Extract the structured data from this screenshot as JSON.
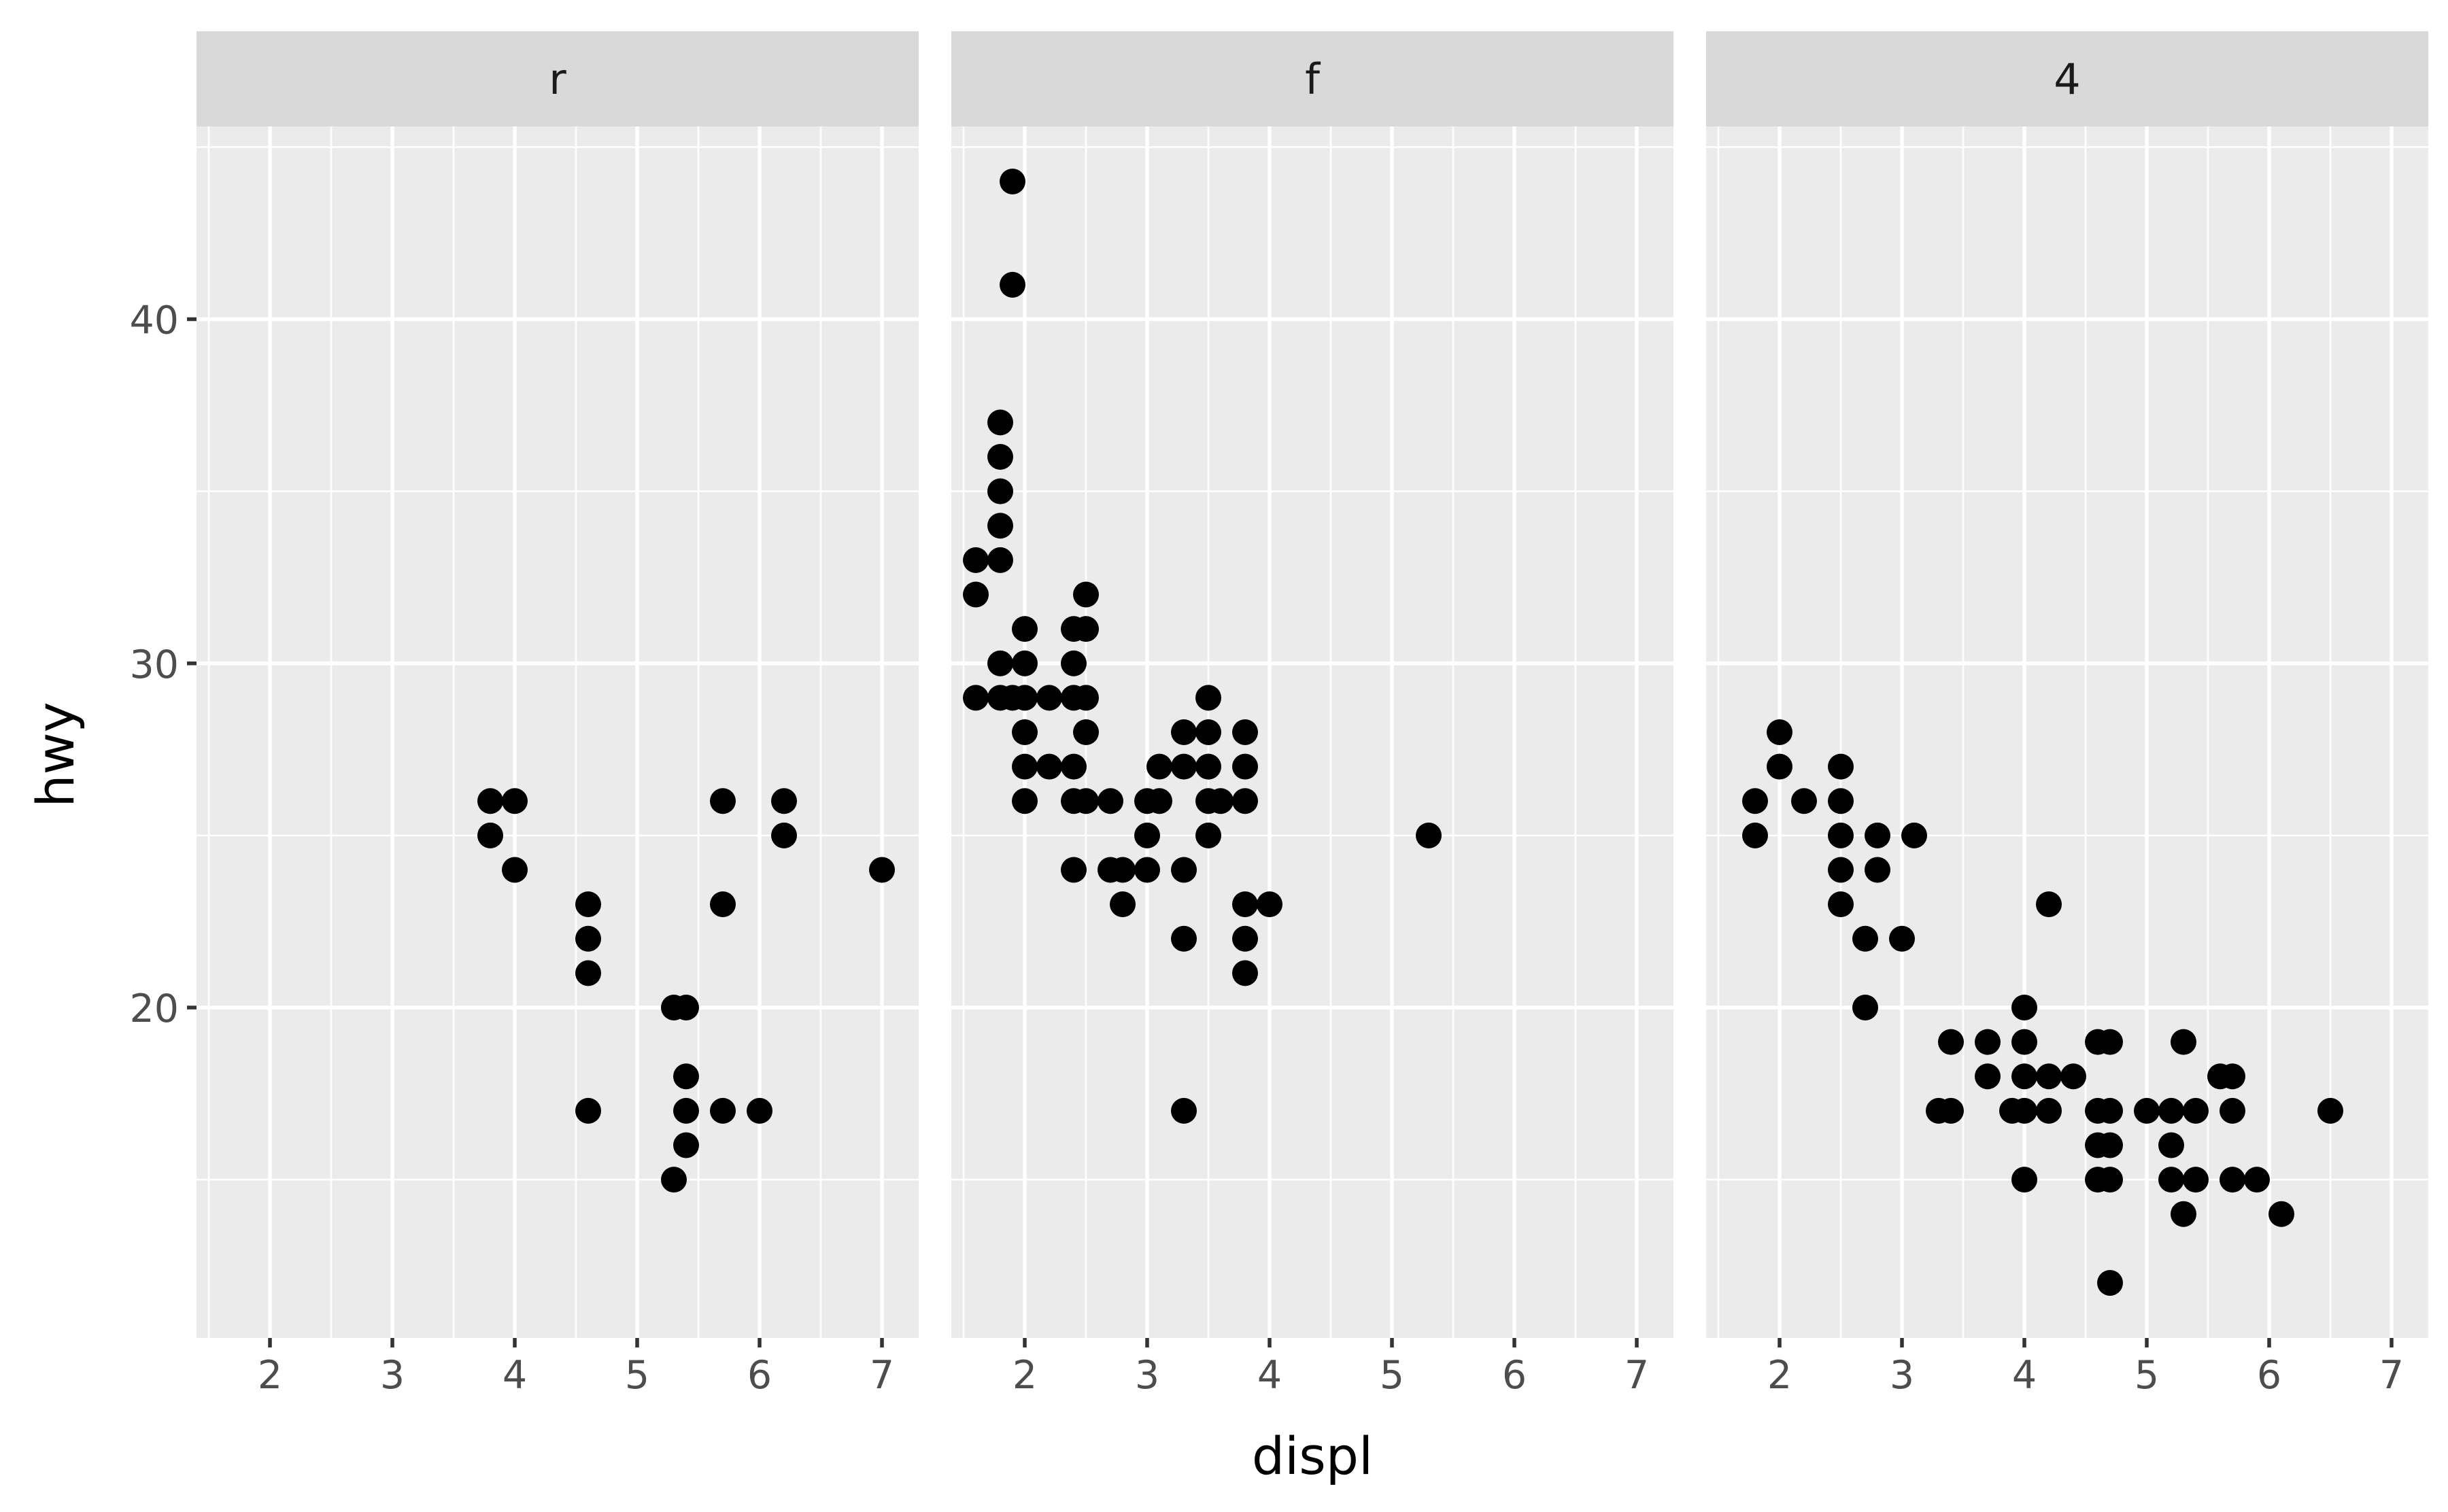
{
  "chart_data": {
    "type": "scatter",
    "facet_by": "drv",
    "xlabel": "displ",
    "ylabel": "hwy",
    "xlim": [
      1.4,
      7.3
    ],
    "ylim": [
      10.4,
      45.6
    ],
    "x_ticks": [
      2,
      3,
      4,
      5,
      6,
      7
    ],
    "y_ticks": [
      20,
      30,
      40
    ],
    "grid": true,
    "panels": [
      {
        "label": "r",
        "points": [
          [
            3.8,
            26
          ],
          [
            3.8,
            25
          ],
          [
            4.0,
            26
          ],
          [
            4.0,
            24
          ],
          [
            4.6,
            23
          ],
          [
            4.6,
            22
          ],
          [
            4.6,
            21
          ],
          [
            4.6,
            17
          ],
          [
            5.3,
            20
          ],
          [
            5.4,
            20
          ],
          [
            5.3,
            15
          ],
          [
            5.4,
            18
          ],
          [
            5.4,
            17
          ],
          [
            5.4,
            16
          ],
          [
            5.7,
            26
          ],
          [
            5.7,
            23
          ],
          [
            5.7,
            17
          ],
          [
            6.0,
            17
          ],
          [
            6.2,
            26
          ],
          [
            6.2,
            25
          ],
          [
            7.0,
            24
          ]
        ]
      },
      {
        "label": "f",
        "points": [
          [
            1.6,
            33
          ],
          [
            1.6,
            32
          ],
          [
            1.6,
            29
          ],
          [
            1.8,
            37
          ],
          [
            1.8,
            36
          ],
          [
            1.8,
            35
          ],
          [
            1.8,
            34
          ],
          [
            1.8,
            33
          ],
          [
            1.8,
            30
          ],
          [
            1.8,
            29
          ],
          [
            1.9,
            44
          ],
          [
            1.9,
            41
          ],
          [
            1.9,
            29
          ],
          [
            2.0,
            31
          ],
          [
            2.0,
            30
          ],
          [
            2.0,
            29
          ],
          [
            2.0,
            28
          ],
          [
            2.0,
            27
          ],
          [
            2.0,
            26
          ],
          [
            2.2,
            29
          ],
          [
            2.2,
            27
          ],
          [
            2.4,
            31
          ],
          [
            2.4,
            30
          ],
          [
            2.4,
            29
          ],
          [
            2.4,
            27
          ],
          [
            2.4,
            26
          ],
          [
            2.4,
            24
          ],
          [
            2.5,
            32
          ],
          [
            2.5,
            31
          ],
          [
            2.5,
            29
          ],
          [
            2.5,
            28
          ],
          [
            2.5,
            26
          ],
          [
            2.7,
            26
          ],
          [
            2.7,
            24
          ],
          [
            2.8,
            24
          ],
          [
            2.8,
            23
          ],
          [
            3.0,
            26
          ],
          [
            3.0,
            25
          ],
          [
            3.0,
            24
          ],
          [
            3.1,
            27
          ],
          [
            3.1,
            26
          ],
          [
            3.3,
            28
          ],
          [
            3.3,
            27
          ],
          [
            3.3,
            24
          ],
          [
            3.3,
            22
          ],
          [
            3.3,
            17
          ],
          [
            3.5,
            29
          ],
          [
            3.5,
            28
          ],
          [
            3.5,
            27
          ],
          [
            3.5,
            26
          ],
          [
            3.5,
            25
          ],
          [
            3.6,
            26
          ],
          [
            3.8,
            28
          ],
          [
            3.8,
            27
          ],
          [
            3.8,
            26
          ],
          [
            3.8,
            23
          ],
          [
            3.8,
            22
          ],
          [
            3.8,
            21
          ],
          [
            4.0,
            23
          ],
          [
            5.3,
            25
          ]
        ]
      },
      {
        "label": "4",
        "points": [
          [
            1.8,
            26
          ],
          [
            1.8,
            25
          ],
          [
            2.0,
            28
          ],
          [
            2.0,
            27
          ],
          [
            2.2,
            26
          ],
          [
            2.5,
            27
          ],
          [
            2.5,
            26
          ],
          [
            2.5,
            25
          ],
          [
            2.5,
            24
          ],
          [
            2.5,
            23
          ],
          [
            2.7,
            22
          ],
          [
            2.7,
            20
          ],
          [
            2.8,
            25
          ],
          [
            2.8,
            24
          ],
          [
            3.0,
            22
          ],
          [
            3.1,
            25
          ],
          [
            3.3,
            17
          ],
          [
            3.4,
            19
          ],
          [
            3.4,
            17
          ],
          [
            3.7,
            19
          ],
          [
            3.7,
            18
          ],
          [
            3.9,
            17
          ],
          [
            4.0,
            20
          ],
          [
            4.0,
            19
          ],
          [
            4.0,
            18
          ],
          [
            4.0,
            17
          ],
          [
            4.0,
            15
          ],
          [
            4.2,
            23
          ],
          [
            4.2,
            18
          ],
          [
            4.2,
            17
          ],
          [
            4.4,
            18
          ],
          [
            4.6,
            19
          ],
          [
            4.6,
            17
          ],
          [
            4.6,
            16
          ],
          [
            4.6,
            15
          ],
          [
            4.7,
            19
          ],
          [
            4.7,
            17
          ],
          [
            4.7,
            16
          ],
          [
            4.7,
            15
          ],
          [
            4.7,
            12
          ],
          [
            5.0,
            17
          ],
          [
            5.2,
            17
          ],
          [
            5.2,
            16
          ],
          [
            5.2,
            15
          ],
          [
            5.3,
            19
          ],
          [
            5.3,
            14
          ],
          [
            5.4,
            17
          ],
          [
            5.4,
            15
          ],
          [
            5.6,
            18
          ],
          [
            5.7,
            18
          ],
          [
            5.7,
            17
          ],
          [
            5.7,
            15
          ],
          [
            5.9,
            15
          ],
          [
            6.1,
            14
          ],
          [
            6.5,
            17
          ]
        ]
      }
    ]
  }
}
